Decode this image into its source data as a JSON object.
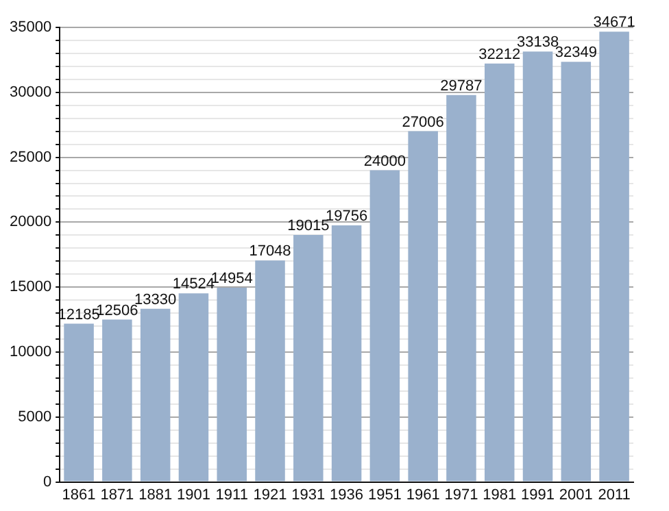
{
  "chart_data": {
    "type": "bar",
    "categories": [
      "1861",
      "1871",
      "1881",
      "1901",
      "1911",
      "1921",
      "1931",
      "1936",
      "1951",
      "1961",
      "1971",
      "1981",
      "1991",
      "2001",
      "2011"
    ],
    "values": [
      12185,
      12506,
      13330,
      14524,
      14954,
      17048,
      19015,
      19756,
      24000,
      27006,
      29787,
      32212,
      33138,
      32349,
      34671
    ],
    "color": "#9ab1cd",
    "data_labels": true,
    "grid": "y",
    "legend": false,
    "ylim": [
      0,
      35000
    ],
    "yticks": [
      0,
      {
        "value": 1000,
        "label": null
      },
      {
        "value": 2000,
        "label": null
      },
      {
        "value": 3000,
        "label": null
      },
      {
        "value": 4000,
        "label": null
      },
      5000,
      {
        "value": 6000,
        "label": null
      },
      {
        "value": 7000,
        "label": null
      },
      {
        "value": 8000,
        "label": null
      },
      {
        "value": 9000,
        "label": null
      },
      10000,
      {
        "value": 11000,
        "label": null
      },
      {
        "value": 12000,
        "label": null
      },
      {
        "value": 13000,
        "label": null
      },
      {
        "value": 14000,
        "label": null
      },
      15000,
      {
        "value": 16000,
        "label": null
      },
      {
        "value": 17000,
        "label": null
      },
      {
        "value": 18000,
        "label": null
      },
      {
        "value": 19000,
        "label": null
      },
      20000,
      {
        "value": 21000,
        "label": null
      },
      {
        "value": 22000,
        "label": null
      },
      {
        "value": 23000,
        "label": null
      },
      {
        "value": 24000,
        "label": null
      },
      25000,
      {
        "value": 26000,
        "label": null
      },
      {
        "value": 27000,
        "label": null
      },
      {
        "value": 28000,
        "label": null
      },
      {
        "value": 29000,
        "label": null
      },
      30000,
      {
        "value": 31000,
        "label": null
      },
      {
        "value": 32000,
        "label": null
      },
      {
        "value": 33000,
        "label": null
      },
      {
        "value": 34000,
        "label": null
      },
      35000
    ]
  }
}
